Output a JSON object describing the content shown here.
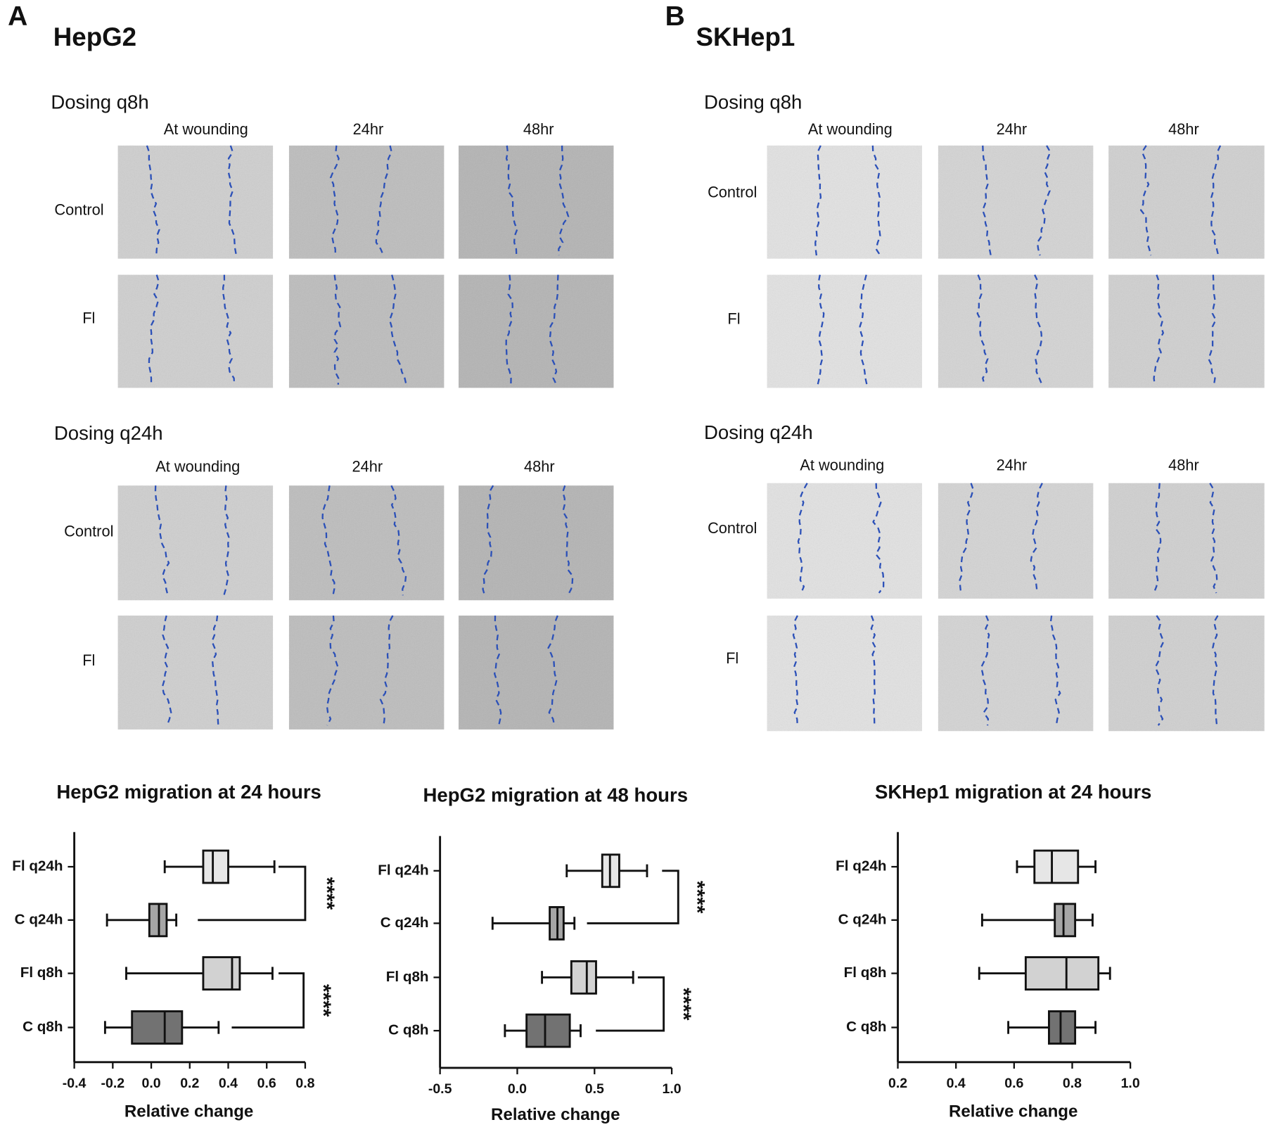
{
  "panels": [
    {
      "letter": "A",
      "cell_line": "HepG2",
      "groups": [
        {
          "title": "Dosing q8h",
          "columns": [
            "At wounding",
            "24hr",
            "48hr"
          ],
          "rows": [
            "Control",
            "Fl"
          ]
        },
        {
          "title": "Dosing q24h",
          "columns": [
            "At wounding",
            "24hr",
            "48hr"
          ],
          "rows": [
            "Control",
            "Fl"
          ]
        }
      ]
    },
    {
      "letter": "B",
      "cell_line": "SKHep1",
      "groups": [
        {
          "title": "Dosing q8h",
          "columns": [
            "At wounding",
            "24hr",
            "48hr"
          ],
          "rows": [
            "Control",
            "Fl"
          ]
        },
        {
          "title": "Dosing q24h",
          "columns": [
            "At wounding",
            "24hr",
            "48hr"
          ],
          "rows": [
            "Control",
            "Fl"
          ]
        }
      ]
    }
  ],
  "chart_data": [
    {
      "type": "box",
      "title": "HepG2 migration at 24 hours",
      "x_label": "Relative change",
      "categories": [
        "Fl q24h",
        "C q24h",
        "Fl q8h",
        "C q8h"
      ],
      "colors": [
        "#e6e6e6",
        "#a6a6a6",
        "#d2d2d2",
        "#727272"
      ],
      "stats": [
        {
          "min": 0.07,
          "q1": 0.27,
          "median": 0.32,
          "q3": 0.4,
          "max": 0.64
        },
        {
          "min": -0.23,
          "q1": -0.01,
          "median": 0.04,
          "q3": 0.08,
          "max": 0.13
        },
        {
          "min": -0.13,
          "q1": 0.27,
          "median": 0.42,
          "q3": 0.46,
          "max": 0.63
        },
        {
          "min": -0.24,
          "q1": -0.1,
          "median": 0.07,
          "q3": 0.16,
          "max": 0.35
        }
      ],
      "significance": [
        "****",
        "****"
      ],
      "xlim": [
        -0.4,
        0.8
      ],
      "xticks": [
        -0.4,
        -0.2,
        {
          "value": 0,
          "label": "0.0"
        },
        0.2,
        0.4,
        0.6,
        0.8
      ]
    },
    {
      "type": "box",
      "title": "HepG2 migration at 48 hours",
      "x_label": "Relative change",
      "categories": [
        "Fl q24h",
        "C q24h",
        "Fl q8h",
        "C q8h"
      ],
      "colors": [
        "#e6e6e6",
        "#a6a6a6",
        "#d2d2d2",
        "#727272"
      ],
      "stats": [
        {
          "min": 0.32,
          "q1": 0.55,
          "median": 0.6,
          "q3": 0.66,
          "max": 0.84
        },
        {
          "min": -0.16,
          "q1": 0.21,
          "median": 0.26,
          "q3": 0.3,
          "max": 0.37
        },
        {
          "min": 0.16,
          "q1": 0.35,
          "median": 0.45,
          "q3": 0.51,
          "max": 0.75
        },
        {
          "min": -0.08,
          "q1": 0.06,
          "median": 0.18,
          "q3": 0.34,
          "max": 0.41
        }
      ],
      "significance": [
        "****",
        "****"
      ],
      "xlim": [
        -0.5,
        1.0
      ],
      "xticks": [
        -0.5,
        {
          "value": 0,
          "label": "0.0"
        },
        0.5,
        {
          "value": 1,
          "label": "1.0"
        }
      ]
    },
    {
      "type": "box",
      "title": "SKHep1 migration at 24 hours",
      "x_label": "Relative change",
      "categories": [
        "Fl q24h",
        "C q24h",
        "Fl q8h",
        "C q8h"
      ],
      "colors": [
        "#e6e6e6",
        "#a6a6a6",
        "#d2d2d2",
        "#727272"
      ],
      "stats": [
        {
          "min": 0.61,
          "q1": 0.67,
          "median": 0.73,
          "q3": 0.82,
          "max": 0.88
        },
        {
          "min": 0.49,
          "q1": 0.74,
          "median": 0.77,
          "q3": 0.81,
          "max": 0.87
        },
        {
          "min": 0.48,
          "q1": 0.64,
          "median": 0.78,
          "q3": 0.89,
          "max": 0.93
        },
        {
          "min": 0.58,
          "q1": 0.72,
          "median": 0.76,
          "q3": 0.81,
          "max": 0.88
        }
      ],
      "xlim": [
        0.2,
        1.0
      ],
      "xticks": [
        0.2,
        0.4,
        0.6,
        0.8,
        {
          "value": 1,
          "label": "1.0"
        }
      ]
    }
  ]
}
